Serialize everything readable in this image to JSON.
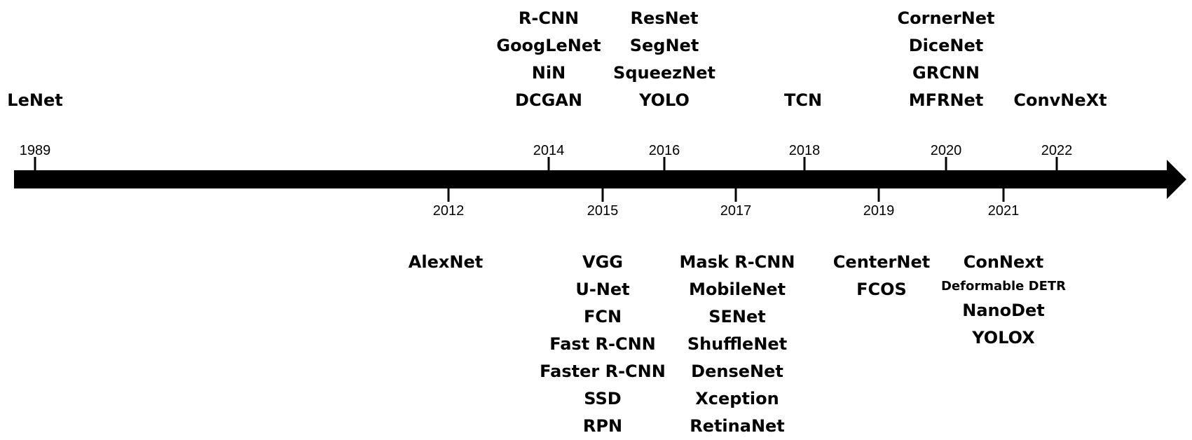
{
  "timeline": {
    "above": [
      {
        "year": "1989",
        "models": [
          {
            "name": "LeNet"
          }
        ]
      },
      {
        "year": "2014",
        "models": [
          {
            "name": "R-CNN"
          },
          {
            "name": "GoogLeNet"
          },
          {
            "name": "NiN"
          },
          {
            "name": "DCGAN"
          }
        ]
      },
      {
        "year": "2016",
        "models": [
          {
            "name": "ResNet"
          },
          {
            "name": "SegNet"
          },
          {
            "name": "SqueezNet"
          },
          {
            "name": "YOLO"
          }
        ]
      },
      {
        "year": "2018",
        "models": [
          {
            "name": "TCN"
          }
        ]
      },
      {
        "year": "2020",
        "models": [
          {
            "name": "CornerNet"
          },
          {
            "name": "DiceNet"
          },
          {
            "name": "GRCNN"
          },
          {
            "name": "MFRNet"
          }
        ]
      },
      {
        "year": "2022",
        "models": [
          {
            "name": "ConvNeXt"
          }
        ]
      }
    ],
    "below": [
      {
        "year": "2012",
        "models": [
          {
            "name": "AlexNet"
          }
        ]
      },
      {
        "year": "2015",
        "models": [
          {
            "name": "VGG"
          },
          {
            "name": "U-Net"
          },
          {
            "name": "FCN"
          },
          {
            "name": "Fast R-CNN"
          },
          {
            "name": "Faster R-CNN"
          },
          {
            "name": "SSD"
          },
          {
            "name": "RPN"
          }
        ]
      },
      {
        "year": "2017",
        "models": [
          {
            "name": "Mask R-CNN"
          },
          {
            "name": "MobileNet"
          },
          {
            "name": "SENet"
          },
          {
            "name": "ShuffleNet"
          },
          {
            "name": "DenseNet"
          },
          {
            "name": "Xception"
          },
          {
            "name": "RetinaNet"
          }
        ]
      },
      {
        "year": "2019",
        "models": [
          {
            "name": "CenterNet"
          },
          {
            "name": "FCOS"
          }
        ]
      },
      {
        "year": "2021",
        "models": [
          {
            "name": "ConNext"
          },
          {
            "name": "Deformable DETR",
            "small": true
          },
          {
            "name": "NanoDet"
          },
          {
            "name": "YOLOX"
          }
        ]
      }
    ]
  }
}
